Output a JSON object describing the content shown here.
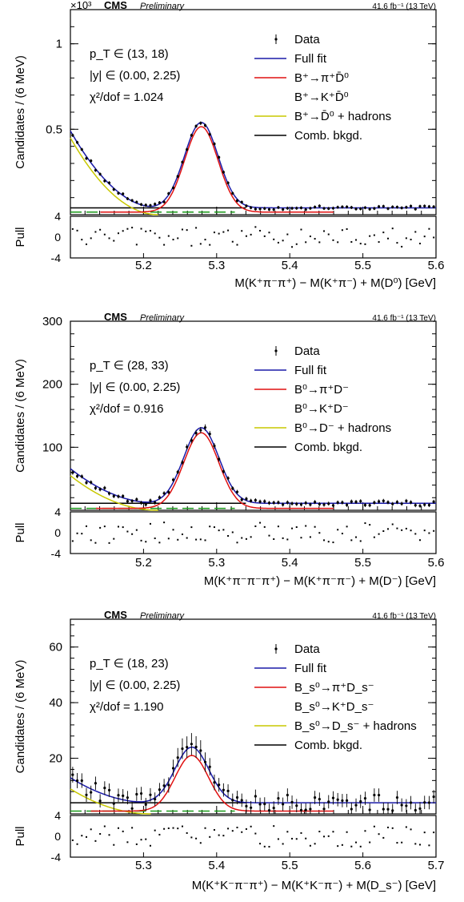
{
  "chart_data": [
    {
      "type": "line",
      "multiplier_label": "×10³",
      "cms": "CMS",
      "prelim": "Preliminary",
      "lumi": "41.6 fb⁻¹ (13 TeV)",
      "ylabel": "Candidates / (6 MeV)",
      "xlabel": "M(K⁺π⁻π⁺) − M(K⁺π⁻) + M(D⁰) [GeV]",
      "pull_label": "Pull",
      "info": [
        "p_T ∈ (13, 18)",
        "|y| ∈ (0.00, 2.25)",
        "χ²/dof = 1.024"
      ],
      "legend": [
        {
          "label": "Data",
          "color": "#000000",
          "kind": "data"
        },
        {
          "label": "Full fit",
          "color": "#1a1aa8",
          "kind": "line"
        },
        {
          "label": "B⁺→π⁺D̄⁰",
          "color": "#e01010",
          "kind": "line"
        },
        {
          "label": "B⁺→K⁺D̄⁰",
          "color": "#e01010",
          "kind": "none"
        },
        {
          "label": "B⁺→D̄⁰ + hadrons",
          "color": "#c8c800",
          "kind": "line"
        },
        {
          "label": "Comb. bkgd.",
          "color": "#000000",
          "kind": "line"
        }
      ],
      "xlim": [
        5.1,
        5.6
      ],
      "ylim": [
        0,
        1.2
      ],
      "xticks": [
        5.2,
        5.3,
        5.4,
        5.5,
        5.6
      ],
      "yticks": [
        0.5,
        1
      ],
      "pull_ticks": [
        4,
        0,
        -4
      ],
      "signal": {
        "peak_x": 5.279,
        "peak_y": 0.5,
        "width": 0.023
      },
      "partreco": {
        "start_y": 0.45,
        "end_x": 5.22
      },
      "combinatorial": 0.04,
      "kaon_level": 0.015,
      "noise": 0.012
    },
    {
      "type": "line",
      "multiplier_label": "",
      "cms": "CMS",
      "prelim": "Preliminary",
      "lumi": "41.6 fb⁻¹ (13 TeV)",
      "ylabel": "Candidates / (6 MeV)",
      "xlabel": "M(K⁺π⁻π⁻π⁺) − M(K⁺π⁻π⁻) + M(D⁻) [GeV]",
      "pull_label": "Pull",
      "info": [
        "p_T ∈ (28, 33)",
        "|y| ∈ (0.00, 2.25)",
        "χ²/dof = 0.916"
      ],
      "legend": [
        {
          "label": "Data",
          "color": "#000000",
          "kind": "data"
        },
        {
          "label": "Full fit",
          "color": "#1a1aa8",
          "kind": "line"
        },
        {
          "label": "B⁰→π⁺D⁻",
          "color": "#e01010",
          "kind": "line"
        },
        {
          "label": "B⁰→K⁺D⁻",
          "color": "#e01010",
          "kind": "none"
        },
        {
          "label": "B⁰→D⁻ + hadrons",
          "color": "#c8c800",
          "kind": "line"
        },
        {
          "label": "Comb. bkgd.",
          "color": "#000000",
          "kind": "line"
        }
      ],
      "xlim": [
        5.1,
        5.6
      ],
      "ylim": [
        0,
        300
      ],
      "xticks": [
        5.2,
        5.3,
        5.4,
        5.5,
        5.6
      ],
      "yticks": [
        100,
        200,
        300
      ],
      "pull_ticks": [
        4,
        0,
        -4
      ],
      "signal": {
        "peak_x": 5.279,
        "peak_y": 120,
        "width": 0.024
      },
      "partreco": {
        "start_y": 55,
        "end_x": 5.22
      },
      "combinatorial": 11,
      "kaon_level": 3,
      "noise": 4
    },
    {
      "type": "line",
      "multiplier_label": "",
      "cms": "CMS",
      "prelim": "Preliminary",
      "lumi": "41.6 fb⁻¹ (13 TeV)",
      "ylabel": "Candidates / (6 MeV)",
      "xlabel": "M(K⁺K⁻π⁻π⁺) − M(K⁺K⁻π⁻) + M(D_s⁻) [GeV]",
      "pull_label": "Pull",
      "info": [
        "p_T ∈ (18, 23)",
        "|y| ∈ (0.00, 2.25)",
        "χ²/dof = 1.190"
      ],
      "legend": [
        {
          "label": "Data",
          "color": "#000000",
          "kind": "data"
        },
        {
          "label": "Full fit",
          "color": "#1a1aa8",
          "kind": "line"
        },
        {
          "label": "B_s⁰→π⁺D_s⁻",
          "color": "#e01010",
          "kind": "line"
        },
        {
          "label": "B_s⁰→K⁺D_s⁻",
          "color": "#e01010",
          "kind": "none"
        },
        {
          "label": "B_s⁰→D_s⁻ + hadrons",
          "color": "#c8c800",
          "kind": "line"
        },
        {
          "label": "Comb. bkgd.",
          "color": "#000000",
          "kind": "line"
        }
      ],
      "xlim": [
        5.2,
        5.7
      ],
      "ylim": [
        0,
        70
      ],
      "xticks": [
        5.3,
        5.4,
        5.5,
        5.6,
        5.7
      ],
      "yticks": [
        20,
        40,
        60
      ],
      "pull_ticks": [
        4,
        0,
        -4
      ],
      "signal": {
        "peak_x": 5.366,
        "peak_y": 20,
        "width": 0.023
      },
      "partreco": {
        "start_y": 9,
        "end_x": 5.31
      },
      "combinatorial": 4,
      "kaon_level": 1,
      "noise": 3
    }
  ]
}
